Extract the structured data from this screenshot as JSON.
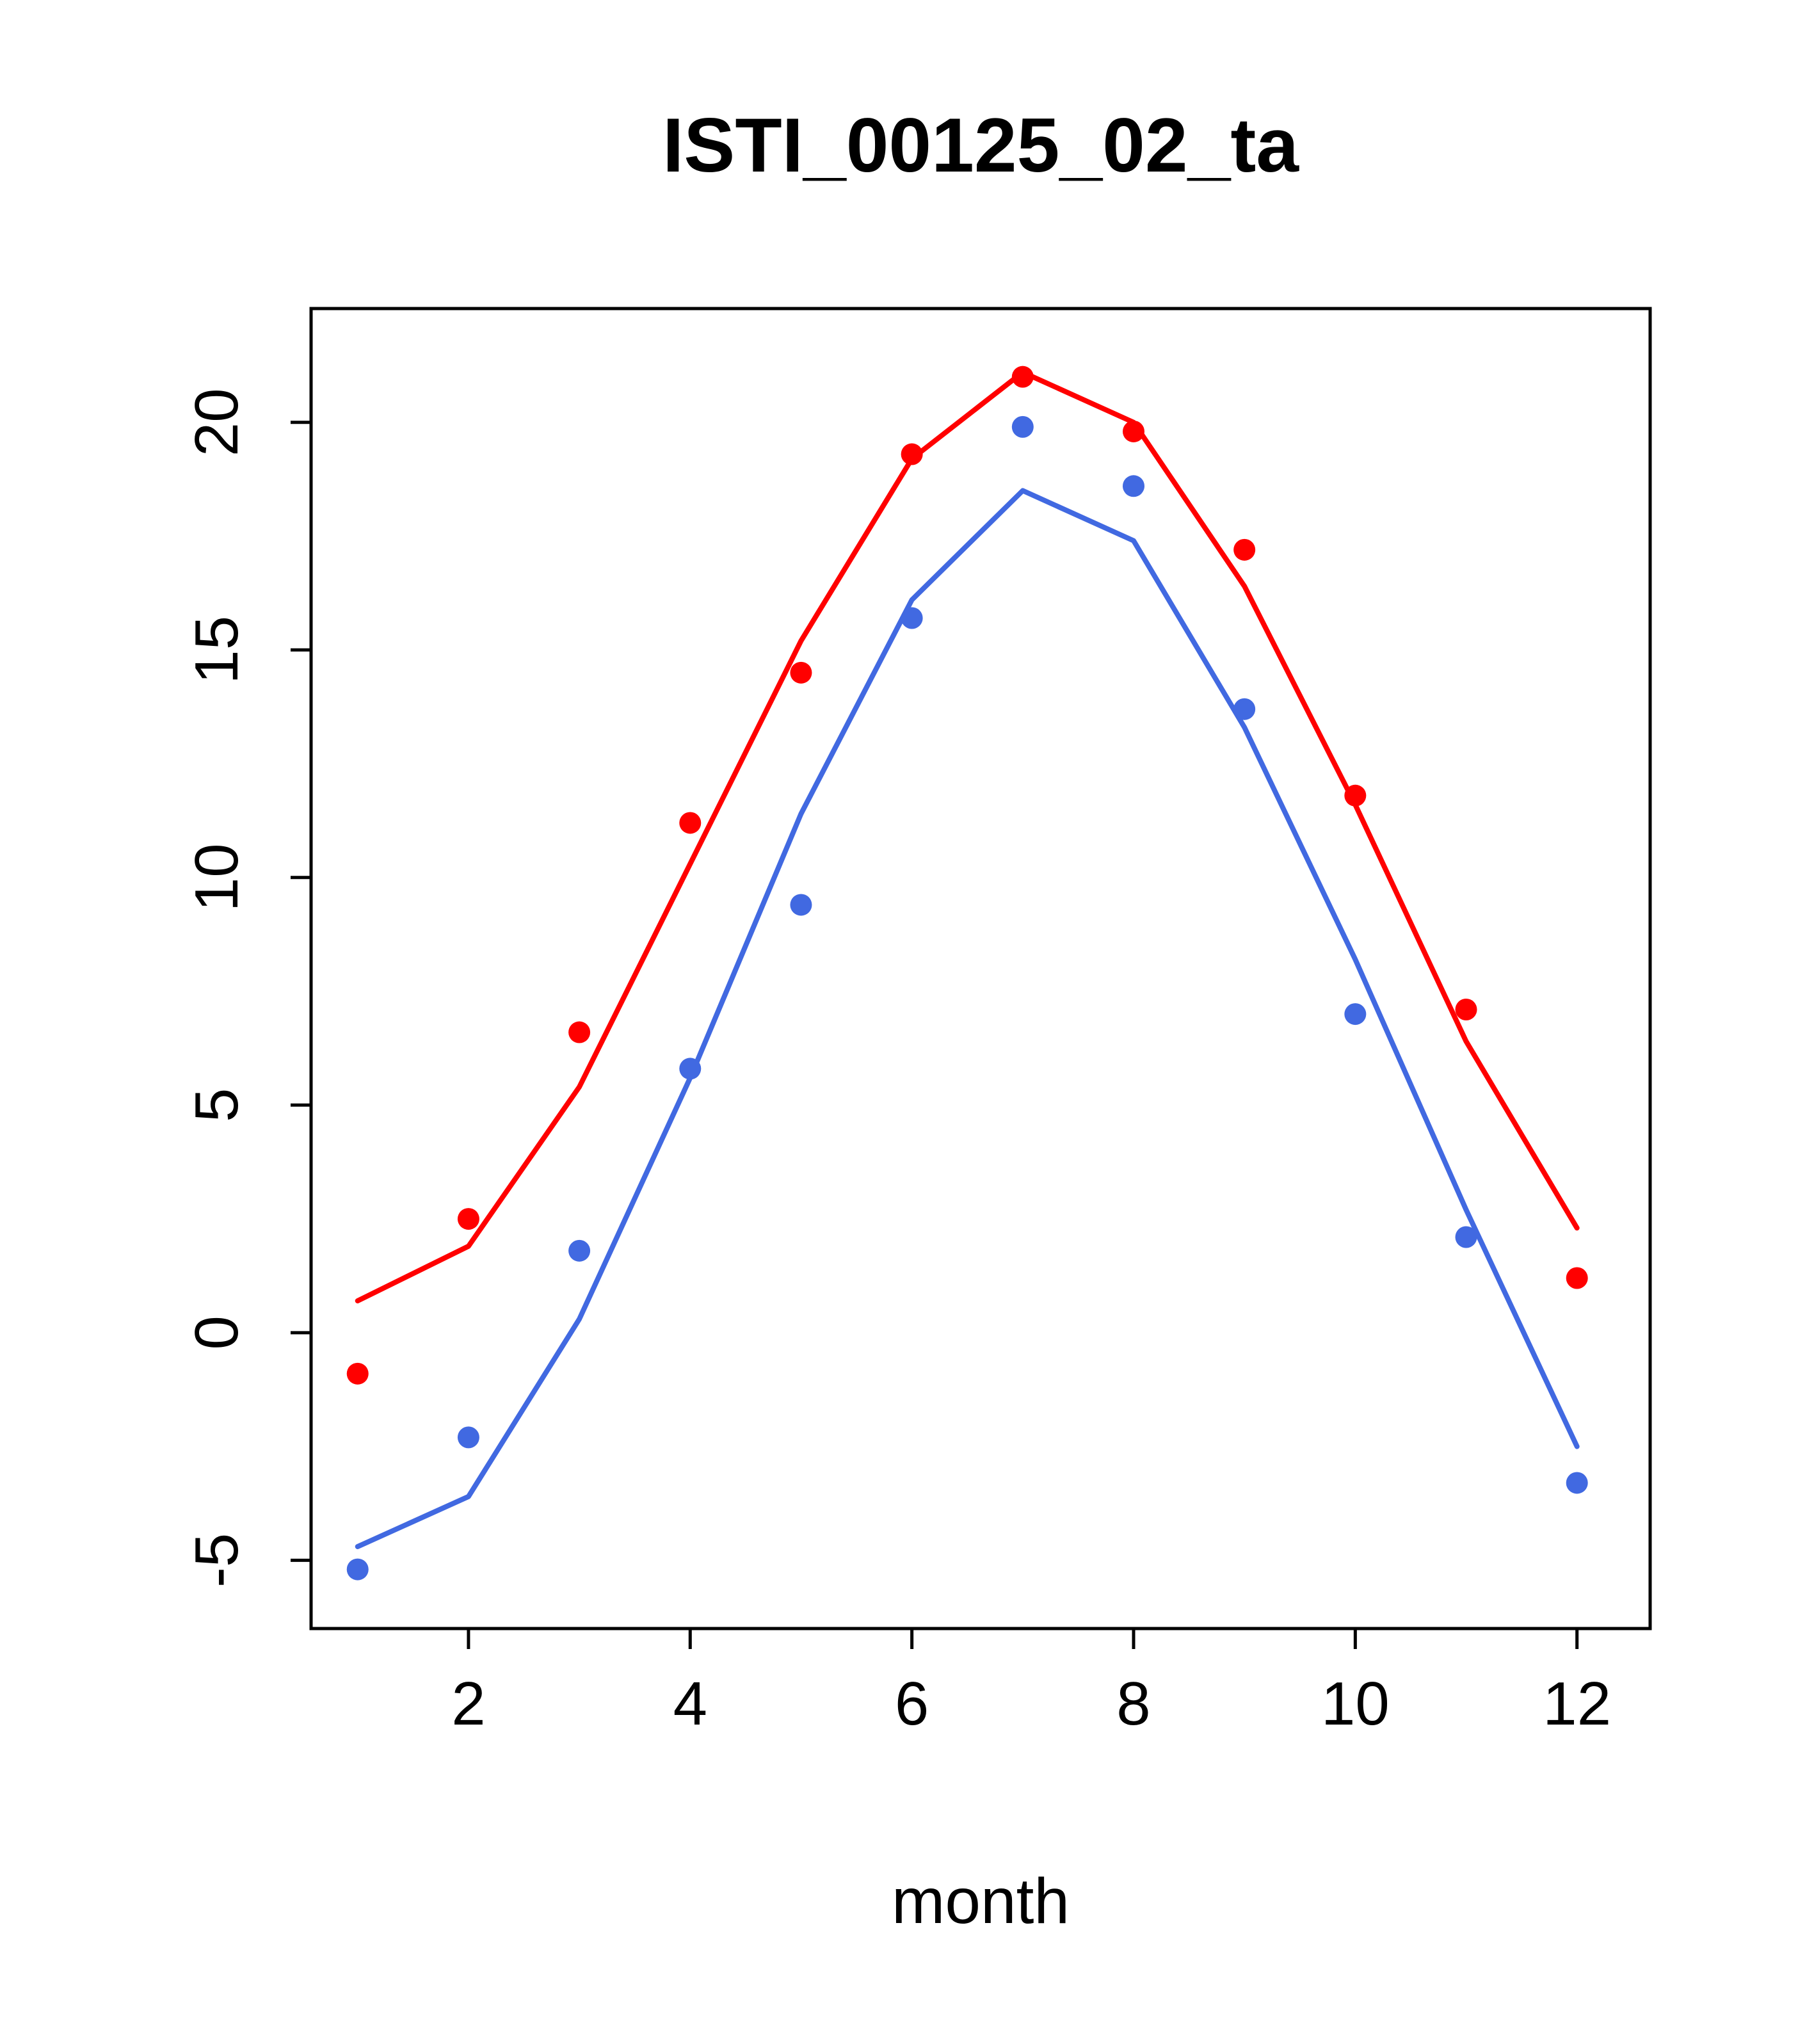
{
  "chart_data": {
    "type": "line",
    "title": "ISTI_00125_02_ta",
    "xlabel": "month",
    "ylabel": "",
    "x": [
      1,
      2,
      3,
      4,
      5,
      6,
      7,
      8,
      9,
      10,
      11,
      12
    ],
    "xticks": [
      2,
      4,
      6,
      8,
      10,
      12
    ],
    "yticks": [
      -5,
      0,
      5,
      10,
      15,
      20
    ],
    "xlim": [
      0.58,
      12.66
    ],
    "ylim": [
      -6.5,
      22.5
    ],
    "grid": false,
    "legend": "none",
    "colors": {
      "red": "#FF0000",
      "blue": "#4169E1",
      "axis": "#000000"
    },
    "series": [
      {
        "name": "red-fitted-line",
        "kind": "line",
        "color": "#FF0000",
        "values": [
          0.7,
          1.9,
          5.4,
          10.3,
          15.2,
          19.2,
          21.1,
          20.0,
          16.4,
          11.6,
          6.4,
          2.3
        ]
      },
      {
        "name": "blue-fitted-line",
        "kind": "line",
        "color": "#4169E1",
        "values": [
          -4.7,
          -3.6,
          0.3,
          5.6,
          11.4,
          16.1,
          18.5,
          17.4,
          13.3,
          8.2,
          2.7,
          -2.5
        ]
      },
      {
        "name": "red-observed-points",
        "kind": "scatter",
        "color": "#FF0000",
        "values": [
          -0.9,
          2.5,
          6.6,
          11.2,
          14.5,
          19.3,
          21.0,
          19.8,
          17.2,
          11.8,
          7.1,
          1.2
        ]
      },
      {
        "name": "blue-observed-points",
        "kind": "scatter",
        "color": "#4169E1",
        "values": [
          -5.2,
          -2.3,
          1.8,
          5.8,
          9.4,
          15.7,
          19.9,
          18.6,
          13.7,
          7.0,
          2.1,
          -3.3
        ]
      }
    ]
  }
}
